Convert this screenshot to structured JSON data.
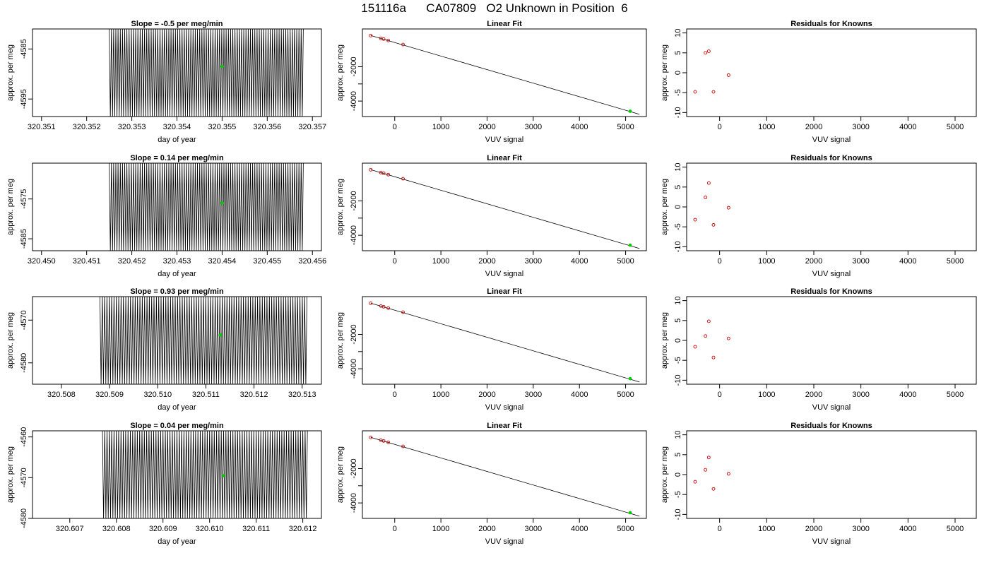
{
  "page": {
    "title": "151116a      CA07809   O2 Unknown in Position  6"
  },
  "colors": {
    "line": "#000000",
    "unknown_point": "#00cc00",
    "known_point": "#cc0000",
    "fit_line": "#000000"
  },
  "chart_data": [
    {
      "type": "line",
      "row": 1,
      "panel": "time-series",
      "title": "Slope =  -0.5  per meg/min",
      "xlabel": "day of year",
      "ylabel": "approx. per meg",
      "xlim": [
        320.3508,
        320.3572
      ],
      "ylim": [
        -4598.5,
        -4581
      ],
      "xticks": [
        320.351,
        320.352,
        320.353,
        320.354,
        320.355,
        320.356,
        320.357
      ],
      "xtick_labels": [
        "320.351",
        "320.352",
        "320.353",
        "320.354",
        "320.355",
        "320.356",
        "320.357"
      ],
      "yticks": [
        -4595,
        -4585
      ],
      "ytick_labels": [
        "-4595",
        "-4585"
      ],
      "series": [
        {
          "x_start": 320.3525,
          "x_end": 320.3568,
          "y_low": -4598.5,
          "y_high": -4581,
          "cycles": 88
        }
      ],
      "unknown_point": {
        "x": 320.355,
        "y": -4588.5
      }
    },
    {
      "type": "scatter",
      "row": 1,
      "panel": "linear-fit",
      "title": "Linear Fit",
      "xlabel": "VUV signal",
      "ylabel": "approx. per meg",
      "xlim": [
        -700,
        5450
      ],
      "ylim": [
        -4900,
        200
      ],
      "xticks": [
        0,
        1000,
        2000,
        3000,
        4000,
        5000
      ],
      "xtick_labels": [
        "0",
        "1000",
        "2000",
        "3000",
        "4000",
        "5000"
      ],
      "yticks": [
        -4000,
        -3000,
        -2000
      ],
      "ytick_labels": [
        "-4000",
        "",
        "-2000"
      ],
      "known_points": [
        {
          "x": -520,
          "y": -185
        },
        {
          "x": -300,
          "y": -347
        },
        {
          "x": -240,
          "y": -390
        },
        {
          "x": -140,
          "y": -470
        },
        {
          "x": 180,
          "y": -707
        }
      ],
      "unknown_point": {
        "x": 5100,
        "y": -4589
      },
      "fit_line": {
        "x": [
          -520,
          5300
        ],
        "y": [
          -180,
          -4770
        ]
      }
    },
    {
      "type": "scatter",
      "row": 1,
      "panel": "residuals",
      "title": "Residuals for Knowns",
      "xlabel": "VUV signal",
      "ylabel": "approx. per meg",
      "xlim": [
        -700,
        5450
      ],
      "ylim": [
        -11,
        11
      ],
      "xticks": [
        0,
        1000,
        2000,
        3000,
        4000,
        5000
      ],
      "xtick_labels": [
        "0",
        "1000",
        "2000",
        "3000",
        "4000",
        "5000"
      ],
      "yticks": [
        -10,
        -5,
        0,
        5,
        10
      ],
      "ytick_labels": [
        "-10",
        "-5",
        "0",
        "5",
        "10"
      ],
      "points": [
        {
          "x": -520,
          "y": -4.8
        },
        {
          "x": -300,
          "y": 5.0
        },
        {
          "x": -230,
          "y": 5.4
        },
        {
          "x": -130,
          "y": -4.8
        },
        {
          "x": 190,
          "y": -0.6
        }
      ]
    },
    {
      "type": "line",
      "row": 2,
      "panel": "time-series",
      "title": "Slope =  0.14  per meg/min",
      "xlabel": "day of year",
      "ylabel": "approx. per meg",
      "xlim": [
        320.4498,
        320.4562
      ],
      "ylim": [
        -4588,
        -4566
      ],
      "xticks": [
        320.45,
        320.451,
        320.452,
        320.453,
        320.454,
        320.455,
        320.456
      ],
      "xtick_labels": [
        "320.450",
        "320.451",
        "320.452",
        "320.453",
        "320.454",
        "320.455",
        "320.456"
      ],
      "yticks": [
        -4585,
        -4575
      ],
      "ytick_labels": [
        "-4585",
        "-4575"
      ],
      "series": [
        {
          "x_start": 320.4515,
          "x_end": 320.4558,
          "y_low": -4588,
          "y_high": -4566,
          "cycles": 88
        }
      ],
      "unknown_point": {
        "x": 320.454,
        "y": -4576
      }
    },
    {
      "type": "scatter",
      "row": 2,
      "panel": "linear-fit",
      "title": "Linear Fit",
      "xlabel": "VUV signal",
      "ylabel": "approx. per meg",
      "xlim": [
        -700,
        5450
      ],
      "ylim": [
        -4900,
        200
      ],
      "xticks": [
        0,
        1000,
        2000,
        3000,
        4000,
        5000
      ],
      "xtick_labels": [
        "0",
        "1000",
        "2000",
        "3000",
        "4000",
        "5000"
      ],
      "yticks": [
        -4000,
        -3000,
        -2000
      ],
      "ytick_labels": [
        "-4000",
        "",
        "-2000"
      ],
      "known_points": [
        {
          "x": -520,
          "y": -185
        },
        {
          "x": -300,
          "y": -347
        },
        {
          "x": -240,
          "y": -390
        },
        {
          "x": -140,
          "y": -470
        },
        {
          "x": 180,
          "y": -707
        }
      ],
      "unknown_point": {
        "x": 5100,
        "y": -4576
      },
      "fit_line": {
        "x": [
          -520,
          5300
        ],
        "y": [
          -180,
          -4770
        ]
      }
    },
    {
      "type": "scatter",
      "row": 2,
      "panel": "residuals",
      "title": "Residuals for Knowns",
      "xlabel": "VUV signal",
      "ylabel": "approx. per meg",
      "xlim": [
        -700,
        5450
      ],
      "ylim": [
        -11,
        11
      ],
      "xticks": [
        0,
        1000,
        2000,
        3000,
        4000,
        5000
      ],
      "xtick_labels": [
        "0",
        "1000",
        "2000",
        "3000",
        "4000",
        "5000"
      ],
      "yticks": [
        -10,
        -5,
        0,
        5,
        10
      ],
      "ytick_labels": [
        "-10",
        "-5",
        "0",
        "5",
        "10"
      ],
      "points": [
        {
          "x": -520,
          "y": -3.2
        },
        {
          "x": -300,
          "y": 2.4
        },
        {
          "x": -230,
          "y": 6.0
        },
        {
          "x": -130,
          "y": -4.5
        },
        {
          "x": 190,
          "y": -0.2
        }
      ]
    },
    {
      "type": "line",
      "row": 3,
      "panel": "time-series",
      "title": "Slope =  0.93  per meg/min",
      "xlabel": "day of year",
      "ylabel": "approx. per meg",
      "xlim": [
        320.5074,
        320.5134
      ],
      "ylim": [
        -4585,
        -4564.5
      ],
      "xticks": [
        320.508,
        320.509,
        320.51,
        320.511,
        320.512,
        320.513
      ],
      "xtick_labels": [
        "320.508",
        "320.509",
        "320.510",
        "320.511",
        "320.512",
        "320.513"
      ],
      "yticks": [
        -4580,
        -4570
      ],
      "ytick_labels": [
        "-4580",
        "-4570"
      ],
      "series": [
        {
          "x_start": 320.5088,
          "x_end": 320.5131,
          "y_low": -4585,
          "y_high": -4564.5,
          "cycles": 88
        }
      ],
      "unknown_point": {
        "x": 320.5113,
        "y": -4573.5
      }
    },
    {
      "type": "scatter",
      "row": 3,
      "panel": "linear-fit",
      "title": "Linear Fit",
      "xlabel": "VUV signal",
      "ylabel": "approx. per meg",
      "xlim": [
        -700,
        5450
      ],
      "ylim": [
        -4900,
        200
      ],
      "xticks": [
        0,
        1000,
        2000,
        3000,
        4000,
        5000
      ],
      "xtick_labels": [
        "0",
        "1000",
        "2000",
        "3000",
        "4000",
        "5000"
      ],
      "yticks": [
        -4000,
        -3000,
        -2000
      ],
      "ytick_labels": [
        "-4000",
        "",
        "-2000"
      ],
      "known_points": [
        {
          "x": -520,
          "y": -185
        },
        {
          "x": -300,
          "y": -347
        },
        {
          "x": -240,
          "y": -390
        },
        {
          "x": -140,
          "y": -470
        },
        {
          "x": 180,
          "y": -707
        }
      ],
      "unknown_point": {
        "x": 5100,
        "y": -4574
      },
      "fit_line": {
        "x": [
          -520,
          5300
        ],
        "y": [
          -180,
          -4770
        ]
      }
    },
    {
      "type": "scatter",
      "row": 3,
      "panel": "residuals",
      "title": "Residuals for Knowns",
      "xlabel": "VUV signal",
      "ylabel": "approx. per meg",
      "xlim": [
        -700,
        5450
      ],
      "ylim": [
        -11,
        11
      ],
      "xticks": [
        0,
        1000,
        2000,
        3000,
        4000,
        5000
      ],
      "xtick_labels": [
        "0",
        "1000",
        "2000",
        "3000",
        "4000",
        "5000"
      ],
      "yticks": [
        -10,
        -5,
        0,
        5,
        10
      ],
      "ytick_labels": [
        "-10",
        "-5",
        "0",
        "5",
        "10"
      ],
      "points": [
        {
          "x": -520,
          "y": -1.6
        },
        {
          "x": -300,
          "y": 1.1
        },
        {
          "x": -230,
          "y": 4.8
        },
        {
          "x": -130,
          "y": -4.3
        },
        {
          "x": 190,
          "y": 0.5
        }
      ]
    },
    {
      "type": "line",
      "row": 4,
      "panel": "time-series",
      "title": "Slope =  0.04  per meg/min",
      "xlabel": "day of year",
      "ylabel": "approx. per meg",
      "xlim": [
        320.6062,
        320.6124
      ],
      "ylim": [
        -4580,
        -4558.5
      ],
      "xticks": [
        320.607,
        320.608,
        320.609,
        320.61,
        320.611,
        320.612
      ],
      "xtick_labels": [
        "320.607",
        "320.608",
        "320.609",
        "320.610",
        "320.611",
        "320.612"
      ],
      "yticks": [
        -4580,
        -4570,
        -4560
      ],
      "ytick_labels": [
        "-4580",
        "-4570",
        "-4560"
      ],
      "series": [
        {
          "x_start": 320.6077,
          "x_end": 320.6121,
          "y_low": -4580,
          "y_high": -4558.5,
          "cycles": 88
        }
      ],
      "unknown_point": {
        "x": 320.6103,
        "y": -4569.5
      }
    },
    {
      "type": "scatter",
      "row": 4,
      "panel": "linear-fit",
      "title": "Linear Fit",
      "xlabel": "VUV signal",
      "ylabel": "approx. per meg",
      "xlim": [
        -700,
        5450
      ],
      "ylim": [
        -4900,
        200
      ],
      "xticks": [
        0,
        1000,
        2000,
        3000,
        4000,
        5000
      ],
      "xtick_labels": [
        "0",
        "1000",
        "2000",
        "3000",
        "4000",
        "5000"
      ],
      "yticks": [
        -4000,
        -3000,
        -2000
      ],
      "ytick_labels": [
        "-4000",
        "",
        "-2000"
      ],
      "known_points": [
        {
          "x": -520,
          "y": -185
        },
        {
          "x": -300,
          "y": -347
        },
        {
          "x": -240,
          "y": -390
        },
        {
          "x": -140,
          "y": -470
        },
        {
          "x": 180,
          "y": -707
        }
      ],
      "unknown_point": {
        "x": 5100,
        "y": -4570
      },
      "fit_line": {
        "x": [
          -520,
          5300
        ],
        "y": [
          -180,
          -4770
        ]
      }
    },
    {
      "type": "scatter",
      "row": 4,
      "panel": "residuals",
      "title": "Residuals for Knowns",
      "xlabel": "VUV signal",
      "ylabel": "approx. per meg",
      "xlim": [
        -700,
        5450
      ],
      "ylim": [
        -11,
        11
      ],
      "xticks": [
        0,
        1000,
        2000,
        3000,
        4000,
        5000
      ],
      "xtick_labels": [
        "0",
        "1000",
        "2000",
        "3000",
        "4000",
        "5000"
      ],
      "yticks": [
        -10,
        -5,
        0,
        5,
        10
      ],
      "ytick_labels": [
        "-10",
        "-5",
        "0",
        "5",
        "10"
      ],
      "points": [
        {
          "x": -520,
          "y": -1.8
        },
        {
          "x": -300,
          "y": 1.2
        },
        {
          "x": -230,
          "y": 4.3
        },
        {
          "x": -130,
          "y": -3.6
        },
        {
          "x": 190,
          "y": 0.2
        }
      ]
    }
  ]
}
